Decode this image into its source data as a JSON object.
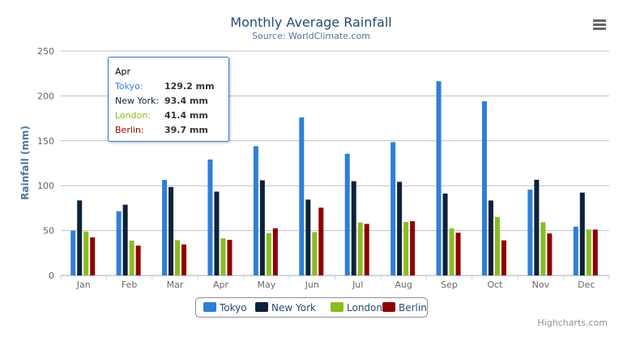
{
  "chart_data": {
    "type": "bar",
    "title": "Monthly Average Rainfall",
    "subtitle": "Source: WorldClimate.com",
    "xlabel": "",
    "ylabel": "Rainfall (mm)",
    "ylim": [
      0,
      250
    ],
    "yticks": [
      "0",
      "50",
      "100",
      "150",
      "200",
      "250"
    ],
    "grid": true,
    "legend_placement": "bottom",
    "categories": [
      "Jan",
      "Feb",
      "Mar",
      "Apr",
      "May",
      "Jun",
      "Jul",
      "Aug",
      "Sep",
      "Oct",
      "Nov",
      "Dec"
    ],
    "series": [
      {
        "name": "Tokyo",
        "color": "#2f7ed8",
        "values": [
          49.9,
          71.5,
          106.4,
          129.2,
          144.0,
          176.0,
          135.6,
          148.5,
          216.4,
          194.1,
          95.6,
          54.4
        ]
      },
      {
        "name": "New York",
        "color": "#0d233a",
        "values": [
          83.6,
          78.8,
          98.5,
          93.4,
          106.0,
          84.5,
          105.0,
          104.3,
          91.2,
          83.5,
          106.6,
          92.3
        ]
      },
      {
        "name": "London",
        "color": "#8bbc21",
        "values": [
          48.9,
          38.8,
          39.3,
          41.4,
          47.0,
          48.3,
          59.0,
          59.6,
          52.4,
          65.2,
          59.3,
          51.2
        ]
      },
      {
        "name": "Berlin",
        "color": "#910000",
        "values": [
          42.4,
          33.2,
          34.5,
          39.7,
          52.6,
          75.5,
          57.4,
          60.4,
          47.6,
          39.1,
          46.8,
          51.1
        ]
      }
    ]
  },
  "tooltip": {
    "header": "Apr",
    "rows": [
      {
        "name": "Tokyo:",
        "value": "129.2 mm",
        "color": "#2f7ed8"
      },
      {
        "name": "New York:",
        "value": "93.4 mm",
        "color": "#0d233a"
      },
      {
        "name": "London:",
        "value": "41.4 mm",
        "color": "#8bbc21"
      },
      {
        "name": "Berlin:",
        "value": "39.7 mm",
        "color": "#910000"
      }
    ]
  },
  "menu_icon": "hamburger-menu-icon",
  "credits": "Highcharts.com"
}
